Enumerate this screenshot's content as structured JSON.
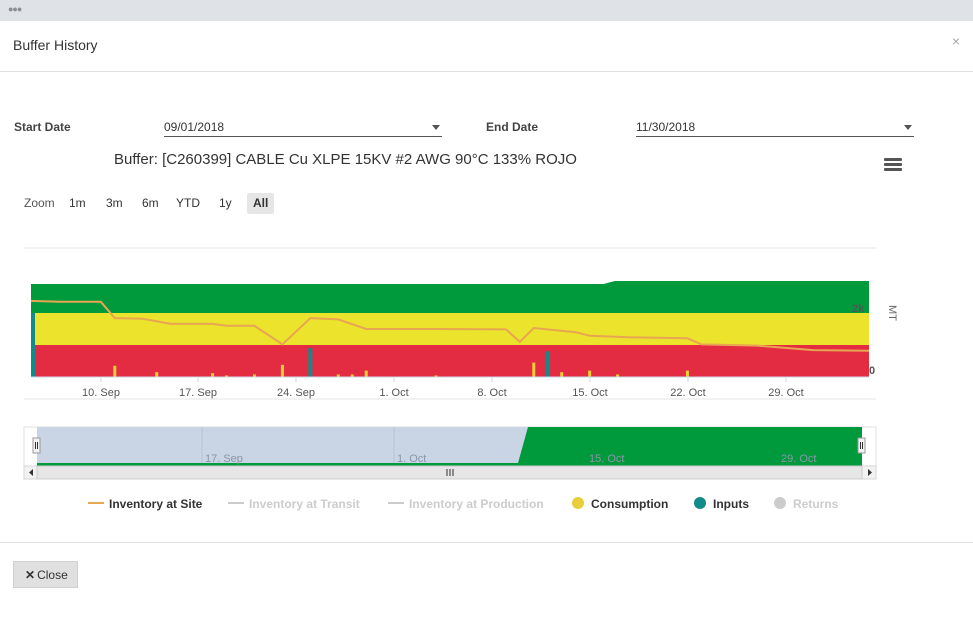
{
  "window": {
    "title": "Buffer History",
    "close_symbol": "×"
  },
  "form": {
    "start_label": "Start Date",
    "start_value": "09/01/2018",
    "end_label": "End Date",
    "end_value": "11/30/2018"
  },
  "chart": {
    "title": "Buffer: [C260399] CABLE Cu XLPE 15KV #2 AWG 90°C 133% ROJO",
    "zoom_label": "Zoom",
    "zoom_buttons": [
      "1m",
      "3m",
      "6m",
      "YTD",
      "1y",
      "All"
    ],
    "zoom_active": "All",
    "y_axis_title": "MT",
    "y_tick_top": "2k",
    "y_tick_zero": "0"
  },
  "chart_data": {
    "type": "line",
    "x_ticks": [
      "10. Sep",
      "17. Sep",
      "24. Sep",
      "1. Oct",
      "8. Oct",
      "15. Oct",
      "22. Oct",
      "29. Oct"
    ],
    "navigator_ticks": [
      "17. Sep",
      "1. Oct",
      "15. Oct",
      "29. Oct"
    ],
    "ylim": [
      0,
      3
    ],
    "zones": [
      {
        "name": "red",
        "color": "#e32b42",
        "from_day": 0,
        "to_day": 60,
        "value": 1
      },
      {
        "name": "yellow",
        "color": "#ebe32c",
        "from_day": 0,
        "to_day": 60,
        "value": 2
      },
      {
        "name": "green",
        "color": "#009a3d",
        "from_day": 0,
        "to_day": 60,
        "value": 3
      }
    ],
    "series": [
      {
        "name": "Inventory at Site",
        "color": "#e8a552",
        "points": [
          [
            0,
            2.38
          ],
          [
            2,
            2.35
          ],
          [
            5,
            2.35
          ],
          [
            6,
            1.84
          ],
          [
            8,
            1.82
          ],
          [
            10,
            1.66
          ],
          [
            13,
            1.66
          ],
          [
            14,
            1.6
          ],
          [
            16,
            1.6
          ],
          [
            18,
            1.02
          ],
          [
            20,
            1.84
          ],
          [
            22,
            1.8
          ],
          [
            24,
            1.5
          ],
          [
            29,
            1.5
          ],
          [
            34,
            1.49
          ],
          [
            35,
            1.1
          ],
          [
            36,
            1.53
          ],
          [
            39,
            1.4
          ],
          [
            40,
            1.29
          ],
          [
            43,
            1.24
          ],
          [
            47,
            1.21
          ],
          [
            48,
            1.02
          ],
          [
            52,
            0.98
          ],
          [
            56,
            0.84
          ],
          [
            60,
            0.82
          ]
        ]
      },
      {
        "name": "Inventory at Transit",
        "color": "#cccccc",
        "points": []
      },
      {
        "name": "Inventory at Production",
        "color": "#cccccc",
        "points": []
      },
      {
        "name": "Consumption",
        "color": "#e8cf3a",
        "bars": [
          [
            6,
            0.35
          ],
          [
            9,
            0.15
          ],
          [
            13,
            0.12
          ],
          [
            14,
            0.05
          ],
          [
            16,
            0.08
          ],
          [
            18,
            0.38
          ],
          [
            20,
            0.08
          ],
          [
            22,
            0.08
          ],
          [
            23,
            0.08
          ],
          [
            24,
            0.2
          ],
          [
            29,
            0.05
          ],
          [
            36,
            0.45
          ],
          [
            37,
            0.1
          ],
          [
            38,
            0.15
          ],
          [
            40,
            0.2
          ],
          [
            42,
            0.08
          ],
          [
            47,
            0.2
          ]
        ]
      },
      {
        "name": "Inputs",
        "color": "#138a8a",
        "bars": [
          [
            0,
            2.0
          ],
          [
            20,
            0.9
          ],
          [
            37,
            0.8
          ]
        ]
      },
      {
        "name": "Returns",
        "color": "#cccccc",
        "points": []
      }
    ],
    "legend": [
      {
        "name": "Inventory at Site",
        "active": true,
        "marker": "line",
        "color": "#e8a552"
      },
      {
        "name": "Inventory at Transit",
        "active": false,
        "marker": "line",
        "color": "#cccccc"
      },
      {
        "name": "Inventory at Production",
        "active": false,
        "marker": "line",
        "color": "#cccccc"
      },
      {
        "name": "Consumption",
        "active": true,
        "marker": "dot",
        "color": "#e8cf3a"
      },
      {
        "name": "Inputs",
        "active": true,
        "marker": "dot",
        "color": "#138a8a"
      },
      {
        "name": "Returns",
        "active": false,
        "marker": "dot",
        "color": "#cccccc"
      }
    ]
  },
  "footer": {
    "close_label": "Close",
    "close_symbol": "✕"
  }
}
